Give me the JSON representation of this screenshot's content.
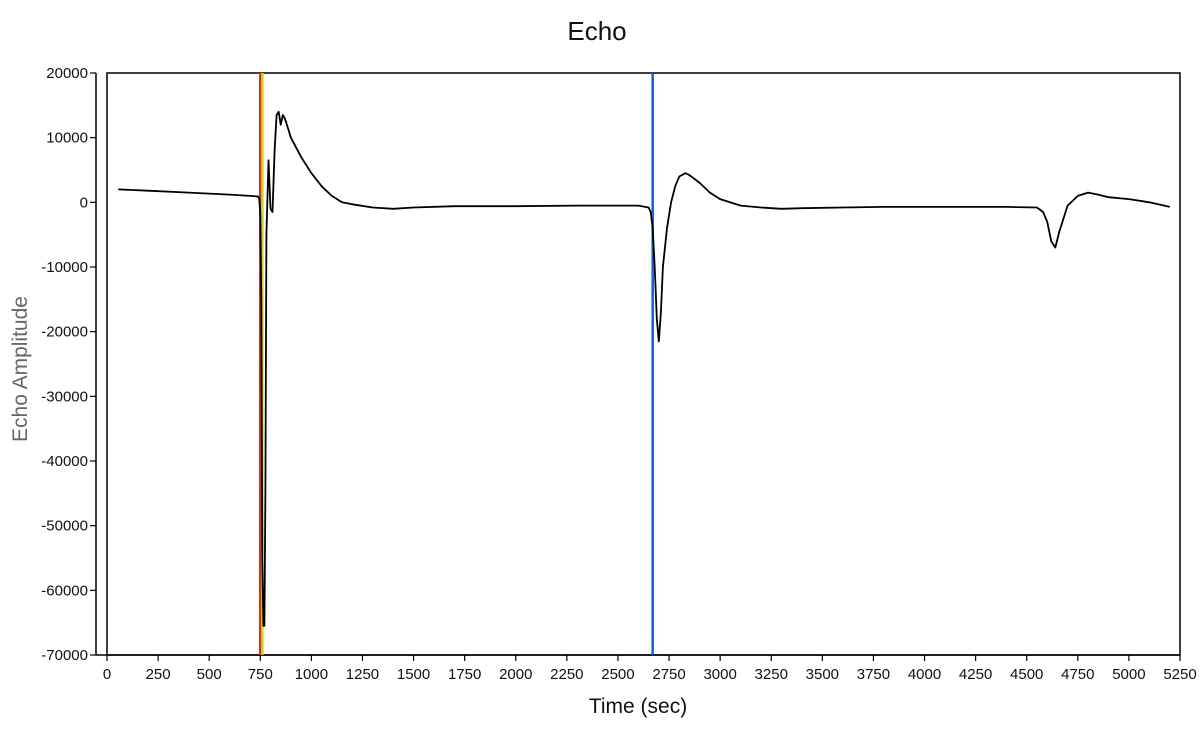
{
  "chart_data": {
    "type": "line",
    "title": "Echo",
    "xlabel": "Time (sec)",
    "ylabel": "Echo Amplitude",
    "xlim": [
      0,
      5250
    ],
    "ylim": [
      -70000,
      20000
    ],
    "xticks": [
      0,
      250,
      500,
      750,
      1000,
      1250,
      1500,
      1750,
      2000,
      2250,
      2500,
      2750,
      3000,
      3250,
      3500,
      3750,
      4000,
      4250,
      4500,
      4750,
      5000,
      5250
    ],
    "yticks": [
      20000,
      10000,
      0,
      -10000,
      -20000,
      -30000,
      -40000,
      -50000,
      -60000,
      -70000
    ],
    "grid": false,
    "series": [
      {
        "color": "#000000",
        "x": [
          55,
          200,
          400,
          600,
          700,
          740,
          745,
          750,
          755,
          760,
          765,
          770,
          775,
          780,
          790,
          800,
          810,
          820,
          830,
          840,
          850,
          860,
          870,
          880,
          900,
          950,
          1000,
          1050,
          1100,
          1150,
          1200,
          1300,
          1400,
          1500,
          1700,
          2000,
          2300,
          2500,
          2600,
          2650,
          2660,
          2670,
          2680,
          2690,
          2700,
          2710,
          2720,
          2740,
          2760,
          2780,
          2800,
          2830,
          2850,
          2900,
          2950,
          3000,
          3100,
          3200,
          3300,
          3400,
          3600,
          3800,
          4000,
          4200,
          4400,
          4550,
          4580,
          4600,
          4620,
          4640,
          4660,
          4680,
          4700,
          4750,
          4800,
          4850,
          4900,
          5000,
          5100,
          5200
        ],
        "y": [
          2000,
          1800,
          1500,
          1200,
          1000,
          900,
          500,
          -2000,
          -15000,
          -55000,
          -65500,
          -65500,
          -45000,
          -5000,
          6500,
          -1000,
          -1500,
          8000,
          13500,
          14000,
          12000,
          13500,
          13000,
          12000,
          10000,
          7000,
          4500,
          2500,
          1000,
          0,
          -300,
          -800,
          -1000,
          -800,
          -600,
          -600,
          -500,
          -500,
          -500,
          -800,
          -1500,
          -4000,
          -10000,
          -18000,
          -21500,
          -17000,
          -10000,
          -4000,
          0,
          2500,
          4000,
          4500,
          4200,
          3000,
          1500,
          500,
          -500,
          -800,
          -1000,
          -900,
          -800,
          -700,
          -700,
          -700,
          -700,
          -800,
          -1500,
          -3000,
          -6000,
          -7000,
          -4500,
          -2500,
          -500,
          1000,
          1500,
          1200,
          800,
          500,
          0,
          -700
        ]
      }
    ],
    "cursors": [
      {
        "x": 750,
        "color": "#d62b1f"
      },
      {
        "x": 760,
        "color": "#c8d418"
      },
      {
        "x": 2670,
        "color": "#1560d4"
      }
    ]
  }
}
